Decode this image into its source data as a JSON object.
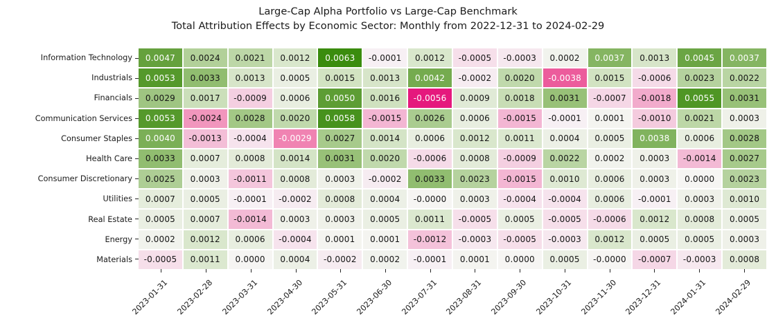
{
  "figure": {
    "background": "#ffffff"
  },
  "chart_data": {
    "type": "heatmap",
    "title": "Large-Cap Alpha Portfolio vs Large-Cap Benchmark",
    "subtitle": "Total Attribution Effects by Economic Sector: Monthly from 2022-12-31 to 2024-02-29",
    "columns": [
      "2023-01-31",
      "2023-02-28",
      "2023-03-31",
      "2023-04-30",
      "2023-05-31",
      "2023-06-30",
      "2023-07-31",
      "2023-08-31",
      "2023-09-30",
      "2023-10-31",
      "2023-11-30",
      "2023-12-31",
      "2024-01-31",
      "2024-02-29"
    ],
    "rows": [
      "Information Technology",
      "Industrials",
      "Financials",
      "Communication Services",
      "Consumer Staples",
      "Health Care",
      "Consumer Discretionary",
      "Utilities",
      "Real Estate",
      "Energy",
      "Materials"
    ],
    "values": [
      [
        "0.0047",
        "0.0024",
        "0.0021",
        "0.0012",
        "0.0063",
        "-0.0001",
        "0.0012",
        "-0.0005",
        "-0.0003",
        "0.0002",
        "0.0037",
        "0.0013",
        "0.0045",
        "0.0037"
      ],
      [
        "0.0053",
        "0.0033",
        "0.0013",
        "0.0005",
        "0.0015",
        "0.0013",
        "0.0042",
        "-0.0002",
        "0.0020",
        "-0.0038",
        "0.0015",
        "-0.0006",
        "0.0023",
        "0.0022"
      ],
      [
        "0.0029",
        "0.0017",
        "-0.0009",
        "0.0006",
        "0.0050",
        "0.0016",
        "-0.0056",
        "0.0009",
        "0.0018",
        "0.0031",
        "-0.0007",
        "-0.0018",
        "0.0055",
        "0.0031"
      ],
      [
        "0.0053",
        "-0.0024",
        "0.0028",
        "0.0020",
        "0.0058",
        "-0.0015",
        "0.0026",
        "0.0006",
        "-0.0015",
        "-0.0001",
        "0.0001",
        "-0.0010",
        "0.0021",
        "0.0003"
      ],
      [
        "0.0040",
        "-0.0013",
        "-0.0004",
        "-0.0029",
        "0.0027",
        "0.0014",
        "0.0006",
        "0.0012",
        "0.0011",
        "0.0004",
        "0.0005",
        "0.0038",
        "0.0006",
        "0.0028"
      ],
      [
        "0.0033",
        "0.0007",
        "0.0008",
        "0.0014",
        "0.0031",
        "0.0020",
        "-0.0006",
        "0.0008",
        "-0.0009",
        "0.0022",
        "0.0002",
        "0.0003",
        "-0.0014",
        "0.0027"
      ],
      [
        "0.0025",
        "0.0003",
        "-0.0011",
        "0.0008",
        "0.0003",
        "-0.0002",
        "0.0033",
        "0.0023",
        "-0.0015",
        "0.0010",
        "0.0006",
        "0.0003",
        "0.0000",
        "0.0023"
      ],
      [
        "0.0007",
        "0.0005",
        "-0.0001",
        "-0.0002",
        "0.0008",
        "0.0004",
        "-0.0000",
        "0.0003",
        "-0.0004",
        "-0.0004",
        "0.0006",
        "-0.0001",
        "0.0003",
        "0.0010"
      ],
      [
        "0.0005",
        "0.0007",
        "-0.0014",
        "0.0003",
        "0.0003",
        "0.0005",
        "0.0011",
        "-0.0005",
        "0.0005",
        "-0.0005",
        "-0.0006",
        "0.0012",
        "0.0008",
        "0.0005"
      ],
      [
        "0.0002",
        "0.0012",
        "0.0006",
        "-0.0004",
        "0.0001",
        "0.0001",
        "-0.0012",
        "-0.0003",
        "-0.0005",
        "-0.0003",
        "0.0012",
        "0.0005",
        "0.0005",
        "0.0003"
      ],
      [
        "-0.0005",
        "0.0011",
        "0.0000",
        "0.0004",
        "-0.0002",
        "0.0002",
        "-0.0001",
        "0.0001",
        "0.0000",
        "0.0005",
        "-0.0000",
        "-0.0007",
        "-0.0003",
        "0.0008"
      ]
    ],
    "value_format": "4 decimal places, annotated in every cell",
    "vmin": -0.0056,
    "vmax": 0.0063,
    "colormap": {
      "style": "diverging pink-white-green (PiYG-like), centered at 0",
      "negative_end": "#e5197d",
      "center": "#f7f5f5",
      "positive_end": "#3a8c0e",
      "cell_text_dark": "#141414",
      "cell_text_light": "#ffffff",
      "grid_line_color": "#ffffff"
    },
    "axes": {
      "x_tick_rotation_deg": 45,
      "legend": "none",
      "colorbar": "none"
    }
  }
}
